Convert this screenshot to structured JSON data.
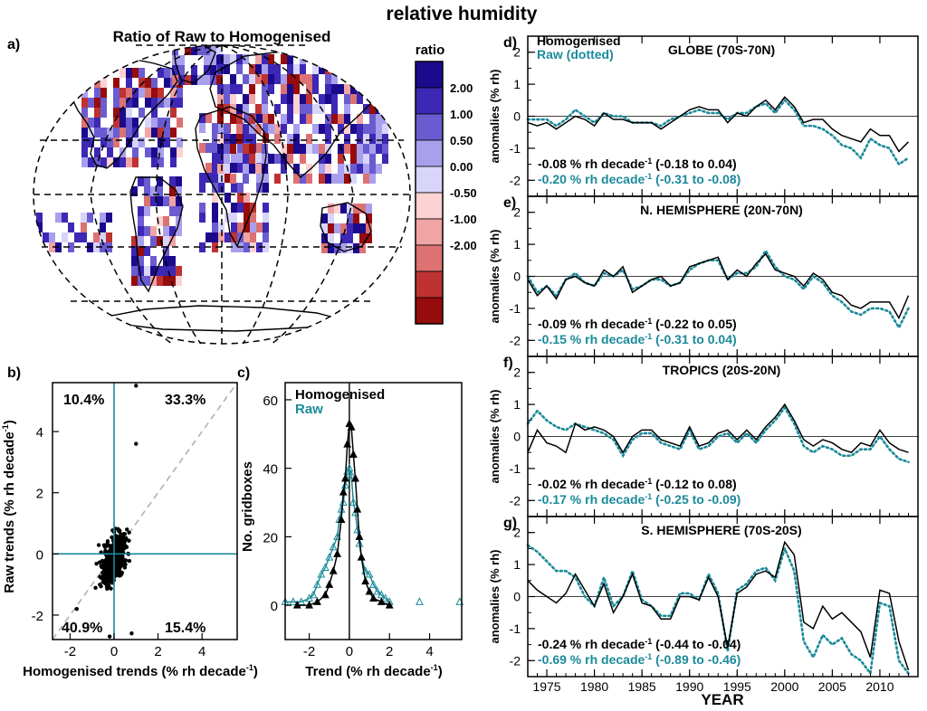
{
  "figure": {
    "title": "relative humidity",
    "x_title": "YEAR",
    "panel_letters": [
      "a)",
      "b)",
      "c)",
      "d)",
      "e)",
      "f)",
      "g)"
    ]
  },
  "colors": {
    "homogenised": "#000000",
    "raw": "#1a8a9a",
    "dashed_identity": "#b0b0b0"
  },
  "map": {
    "title": "Ratio of Raw to Homogenised",
    "colorbar_title": "ratio",
    "colorbar_labels": [
      "2.00",
      "1.00",
      "0.50",
      "0.00",
      "-0.50",
      "-1.00",
      "-2.00"
    ],
    "colorbar_colors": [
      "#1c0a8c",
      "#3c28b4",
      "#6a5cd0",
      "#a8a0ec",
      "#d8d4fa",
      "#fcd2d2",
      "#f0a4a4",
      "#dc7272",
      "#be3232",
      "#960c0c"
    ]
  },
  "scatter": {
    "ylabel": "Raw trends (% rh decade",
    "xlabel": "Homogenised trends (% rh decade",
    "superscript": "-1",
    "close_paren": ")",
    "quadrant_labels": {
      "top_left": "10.4%",
      "top_right": "33.3%",
      "bottom_left": "40.9%",
      "bottom_right": "15.4%"
    }
  },
  "histogram": {
    "ylabel": "No. gridboxes",
    "xlabel": "Trend (% rh decade",
    "legend": [
      "Homogenised",
      "Raw"
    ]
  },
  "timeseries": {
    "ylabel": "anomalies (% rh)",
    "legend_hom": "Homogenised",
    "legend_raw": "Raw (dotted)",
    "trend_unit": "% rh decade",
    "panels": [
      {
        "region": "GLOBE (70S-70N)",
        "hom_trend": "-0.08",
        "hom_ci": "(-0.18 to  0.04)",
        "raw_trend": "-0.20",
        "raw_ci": "(-0.31 to -0.08)"
      },
      {
        "region": "N. HEMISPHERE (20N-70N)",
        "hom_trend": "-0.09",
        "hom_ci": "(-0.22 to  0.05)",
        "raw_trend": "-0.15",
        "raw_ci": "(-0.31 to  0.04)"
      },
      {
        "region": "TROPICS (20S-20N)",
        "hom_trend": "-0.02",
        "hom_ci": "(-0.12 to  0.08)",
        "raw_trend": "-0.17",
        "raw_ci": "(-0.25 to -0.09)"
      },
      {
        "region": "S. HEMISPHERE (70S-20S)",
        "hom_trend": "-0.24",
        "hom_ci": "(-0.44 to -0.04)",
        "raw_trend": "-0.69",
        "raw_ci": "(-0.89 to -0.46)"
      }
    ]
  },
  "chart_data": [
    {
      "type": "scatter",
      "title": "",
      "xlabel": "Homogenised trends (% rh decade-1)",
      "ylabel": "Raw trends (% rh decade-1)",
      "xlim": [
        -2.8,
        5.6
      ],
      "ylim": [
        -2.8,
        5.6
      ],
      "xticks": [
        -2,
        0,
        2,
        4
      ],
      "yticks": [
        -2,
        0,
        2,
        4
      ],
      "quadrant_percentages": {
        "top_left": 10.4,
        "top_right": 33.3,
        "bottom_left": 40.9,
        "bottom_right": 15.4
      },
      "outliers": [
        {
          "x": -1.7,
          "y": -1.8
        },
        {
          "x": 0.8,
          "y": -2.6
        },
        {
          "x": 1.0,
          "y": 3.6
        },
        {
          "x": 1.0,
          "y": 5.5
        },
        {
          "x": -0.2,
          "y": -2.7
        }
      ]
    },
    {
      "type": "line",
      "title": "",
      "xlabel": "Trend (% rh decade-1)",
      "ylabel": "No. gridboxes",
      "xlim": [
        -3.2,
        5.6
      ],
      "ylim": [
        -10,
        65
      ],
      "xticks": [
        -2,
        0,
        2,
        4
      ],
      "yticks": [
        0,
        20,
        40,
        60
      ],
      "series": [
        {
          "name": "Homogenised",
          "x": [
            -2.6,
            -2.0,
            -1.6,
            -1.2,
            -1.0,
            -0.8,
            -0.6,
            -0.4,
            -0.3,
            -0.2,
            -0.1,
            0.0,
            0.1,
            0.2,
            0.3,
            0.4,
            0.5,
            0.6,
            0.8,
            1.0,
            1.2,
            1.6,
            2.0
          ],
          "values": [
            0,
            0,
            1,
            3,
            6,
            10,
            15,
            25,
            33,
            37,
            47,
            53,
            52,
            44,
            37,
            28,
            20,
            14,
            7,
            4,
            2,
            1,
            0
          ]
        },
        {
          "name": "Raw",
          "x": [
            -3.2,
            -2.8,
            -2.4,
            -2.0,
            -1.8,
            -1.6,
            -1.4,
            -1.2,
            -1.0,
            -0.8,
            -0.6,
            -0.5,
            -0.4,
            -0.3,
            -0.2,
            -0.1,
            0.0,
            0.1,
            0.2,
            0.3,
            0.4,
            0.5,
            0.6,
            0.8,
            1.0,
            1.2,
            1.4,
            1.6,
            1.8,
            2.0,
            3.5,
            5.5
          ],
          "values": [
            1,
            1,
            1,
            2,
            3,
            6,
            9,
            11,
            14,
            17,
            20,
            25,
            28,
            30,
            35,
            39,
            40,
            38,
            30,
            27,
            22,
            18,
            14,
            10,
            9,
            6,
            4,
            3,
            2,
            1,
            1,
            1
          ]
        }
      ]
    },
    {
      "type": "line",
      "title": "GLOBE (70S-70N)",
      "xlabel": "YEAR",
      "ylabel": "anomalies (% rh)",
      "xlim": [
        1973,
        2014
      ],
      "ylim": [
        -2.5,
        2.5
      ],
      "x": [
        1973,
        1974,
        1975,
        1976,
        1977,
        1978,
        1979,
        1980,
        1981,
        1982,
        1983,
        1984,
        1985,
        1986,
        1987,
        1988,
        1989,
        1990,
        1991,
        1992,
        1993,
        1994,
        1995,
        1996,
        1997,
        1998,
        1999,
        2000,
        2001,
        2002,
        2003,
        2004,
        2005,
        2006,
        2007,
        2008,
        2009,
        2010,
        2011,
        2012,
        2013
      ],
      "series": [
        {
          "name": "Homogenised",
          "values": [
            -0.2,
            -0.3,
            -0.2,
            -0.4,
            -0.2,
            0.0,
            -0.1,
            -0.3,
            0.1,
            -0.1,
            -0.1,
            -0.2,
            -0.2,
            -0.2,
            -0.4,
            -0.2,
            0.0,
            0.2,
            0.3,
            0.2,
            0.2,
            -0.2,
            0.1,
            0.0,
            0.3,
            0.5,
            0.2,
            0.6,
            0.3,
            -0.2,
            -0.1,
            -0.1,
            -0.4,
            -0.6,
            -0.7,
            -0.8,
            -0.4,
            -0.6,
            -0.6,
            -1.1,
            -0.8
          ]
        },
        {
          "name": "Raw",
          "values": [
            -0.1,
            -0.1,
            -0.1,
            -0.3,
            -0.1,
            0.2,
            0.0,
            -0.2,
            0.1,
            0.0,
            0.0,
            -0.2,
            -0.2,
            -0.2,
            -0.3,
            -0.1,
            0.0,
            0.1,
            0.2,
            0.1,
            0.1,
            -0.1,
            0.1,
            0.1,
            0.3,
            0.4,
            0.1,
            0.5,
            0.2,
            -0.3,
            -0.3,
            -0.4,
            -0.6,
            -0.9,
            -1.0,
            -1.3,
            -0.7,
            -0.9,
            -1.0,
            -1.5,
            -1.3
          ]
        }
      ]
    },
    {
      "type": "line",
      "title": "N. HEMISPHERE (20N-70N)",
      "xlabel": "YEAR",
      "ylabel": "anomalies (% rh)",
      "xlim": [
        1973,
        2014
      ],
      "ylim": [
        -2.5,
        2.5
      ],
      "x": [
        1973,
        1974,
        1975,
        1976,
        1977,
        1978,
        1979,
        1980,
        1981,
        1982,
        1983,
        1984,
        1985,
        1986,
        1987,
        1988,
        1989,
        1990,
        1991,
        1992,
        1993,
        1994,
        1995,
        1996,
        1997,
        1998,
        1999,
        2000,
        2001,
        2002,
        2003,
        2004,
        2005,
        2006,
        2007,
        2008,
        2009,
        2010,
        2011,
        2012,
        2013
      ],
      "series": [
        {
          "name": "Homogenised",
          "values": [
            -0.1,
            -0.6,
            -0.3,
            -0.7,
            -0.1,
            0.0,
            -0.2,
            -0.3,
            0.2,
            0.0,
            0.3,
            -0.5,
            -0.3,
            -0.1,
            0.0,
            -0.3,
            -0.2,
            0.3,
            0.4,
            0.5,
            0.6,
            -0.1,
            0.2,
            0.0,
            0.4,
            0.7,
            0.2,
            0.1,
            0.0,
            -0.3,
            0.1,
            -0.1,
            -0.5,
            -0.6,
            -0.9,
            -1.0,
            -0.8,
            -0.8,
            -0.8,
            -1.3,
            -0.6
          ]
        },
        {
          "name": "Raw",
          "values": [
            0.0,
            -0.5,
            -0.3,
            -0.6,
            -0.1,
            0.1,
            -0.2,
            -0.3,
            0.1,
            0.0,
            0.2,
            -0.4,
            -0.3,
            -0.1,
            -0.1,
            -0.3,
            -0.2,
            0.2,
            0.4,
            0.5,
            0.5,
            -0.1,
            0.1,
            0.1,
            0.3,
            0.8,
            0.3,
            0.0,
            -0.1,
            -0.4,
            0.0,
            -0.2,
            -0.6,
            -0.8,
            -1.1,
            -1.2,
            -1.0,
            -1.0,
            -1.1,
            -1.6,
            -1.0
          ]
        }
      ]
    },
    {
      "type": "line",
      "title": "TROPICS (20S-20N)",
      "xlabel": "YEAR",
      "ylabel": "anomalies (% rh)",
      "xlim": [
        1973,
        2014
      ],
      "ylim": [
        -2.5,
        2.5
      ],
      "x": [
        1973,
        1974,
        1975,
        1976,
        1977,
        1978,
        1979,
        1980,
        1981,
        1982,
        1983,
        1984,
        1985,
        1986,
        1987,
        1988,
        1989,
        1990,
        1991,
        1992,
        1993,
        1994,
        1995,
        1996,
        1997,
        1998,
        1999,
        2000,
        2001,
        2002,
        2003,
        2004,
        2005,
        2006,
        2007,
        2008,
        2009,
        2010,
        2011,
        2012,
        2013
      ],
      "series": [
        {
          "name": "Homogenised",
          "values": [
            -0.5,
            0.2,
            -0.2,
            -0.3,
            -0.5,
            0.4,
            0.2,
            0.3,
            0.2,
            0.0,
            -0.5,
            0.0,
            0.2,
            0.2,
            -0.1,
            -0.2,
            -0.3,
            0.3,
            -0.3,
            -0.2,
            0.1,
            0.2,
            -0.1,
            0.2,
            -0.1,
            0.3,
            0.6,
            1.0,
            0.5,
            -0.1,
            -0.3,
            -0.1,
            -0.2,
            -0.4,
            -0.5,
            -0.2,
            -0.3,
            0.2,
            -0.2,
            -0.4,
            -0.5
          ]
        },
        {
          "name": "Raw",
          "values": [
            0.4,
            0.8,
            0.5,
            0.3,
            0.2,
            0.4,
            0.3,
            0.2,
            0.1,
            -0.1,
            -0.6,
            -0.1,
            0.1,
            0.1,
            -0.2,
            -0.3,
            -0.4,
            0.2,
            -0.4,
            -0.3,
            0.0,
            0.1,
            -0.2,
            0.1,
            -0.2,
            0.2,
            0.5,
            0.9,
            0.4,
            -0.3,
            -0.5,
            -0.3,
            -0.4,
            -0.6,
            -0.6,
            -0.4,
            -0.4,
            0.0,
            -0.4,
            -0.7,
            -0.8
          ]
        }
      ]
    },
    {
      "type": "line",
      "title": "S. HEMISPHERE (70S-20S)",
      "xlabel": "YEAR",
      "ylabel": "anomalies (% rh)",
      "xlim": [
        1973,
        2014
      ],
      "ylim": [
        -2.5,
        2.5
      ],
      "x": [
        1973,
        1974,
        1975,
        1976,
        1977,
        1978,
        1979,
        1980,
        1981,
        1982,
        1983,
        1984,
        1985,
        1986,
        1987,
        1988,
        1989,
        1990,
        1991,
        1992,
        1993,
        1994,
        1995,
        1996,
        1997,
        1998,
        1999,
        2000,
        2001,
        2002,
        2003,
        2004,
        2005,
        2006,
        2007,
        2008,
        2009,
        2010,
        2011,
        2012,
        2013
      ],
      "series": [
        {
          "name": "Homogenised",
          "values": [
            0.5,
            0.2,
            0.0,
            -0.2,
            0.1,
            0.7,
            0.2,
            -0.3,
            0.4,
            -0.5,
            0.0,
            0.7,
            -0.2,
            -0.3,
            -0.7,
            -0.7,
            0.0,
            0.0,
            -0.1,
            0.6,
            0.0,
            -1.6,
            0.1,
            0.3,
            0.7,
            0.8,
            0.6,
            1.7,
            1.3,
            -0.8,
            -1.0,
            -0.3,
            -0.7,
            -0.5,
            -0.8,
            -1.1,
            -1.9,
            0.2,
            0.1,
            -1.4,
            -2.3
          ]
        },
        {
          "name": "Raw",
          "values": [
            1.6,
            1.4,
            1.1,
            0.8,
            0.8,
            0.6,
            0.0,
            -0.3,
            0.6,
            -0.3,
            0.0,
            0.8,
            -0.1,
            -0.3,
            -0.6,
            -0.6,
            0.1,
            0.1,
            -0.1,
            0.7,
            0.1,
            -1.7,
            0.2,
            0.4,
            0.8,
            0.9,
            0.5,
            1.5,
            0.8,
            -1.4,
            -1.9,
            -1.2,
            -1.5,
            -1.3,
            -1.8,
            -2.0,
            -2.4,
            -0.2,
            -0.3,
            -2.0,
            -2.4
          ]
        }
      ]
    }
  ]
}
